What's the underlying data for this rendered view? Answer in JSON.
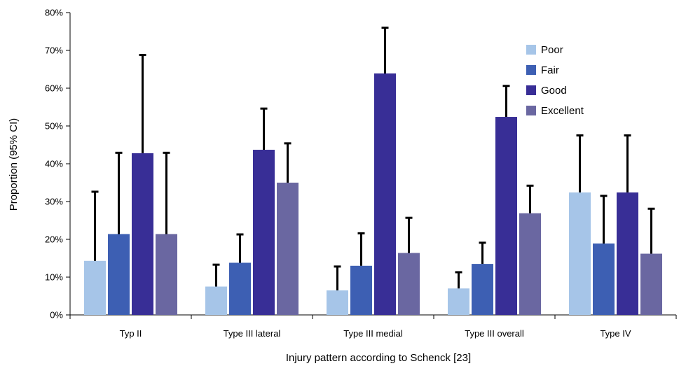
{
  "chart_data": {
    "type": "bar",
    "title": "",
    "xlabel": "Injury pattern according to Schenck [23]",
    "ylabel": "Proportion (95% CI)",
    "ylim": [
      0,
      80
    ],
    "yticks": [
      "0%",
      "10%",
      "20%",
      "30%",
      "40%",
      "50%",
      "60%",
      "70%",
      "80%"
    ],
    "grid": false,
    "legend_position": "top-right",
    "categories": [
      "Typ II",
      "Type III lateral",
      "Type III medial",
      "Type III overall",
      "Type IV"
    ],
    "series": [
      {
        "name": "Poor",
        "color": "#a6c5e8",
        "values": [
          14.3,
          7.5,
          6.5,
          7.0,
          32.4
        ],
        "ci_upper": [
          32.6,
          13.3,
          12.8,
          11.3,
          47.5
        ]
      },
      {
        "name": "Fair",
        "color": "#3d5fb3",
        "values": [
          21.4,
          13.8,
          13.0,
          13.5,
          18.9
        ],
        "ci_upper": [
          42.9,
          21.3,
          21.6,
          19.1,
          31.5
        ]
      },
      {
        "name": "Good",
        "color": "#382e96",
        "values": [
          42.8,
          43.7,
          63.9,
          52.4,
          32.4
        ],
        "ci_upper": [
          68.8,
          54.6,
          76.0,
          60.6,
          47.5
        ]
      },
      {
        "name": "Excellent",
        "color": "#6a67a1",
        "values": [
          21.4,
          35.0,
          16.4,
          26.9,
          16.2
        ],
        "ci_upper": [
          42.9,
          45.4,
          25.7,
          34.2,
          28.1
        ]
      }
    ]
  }
}
